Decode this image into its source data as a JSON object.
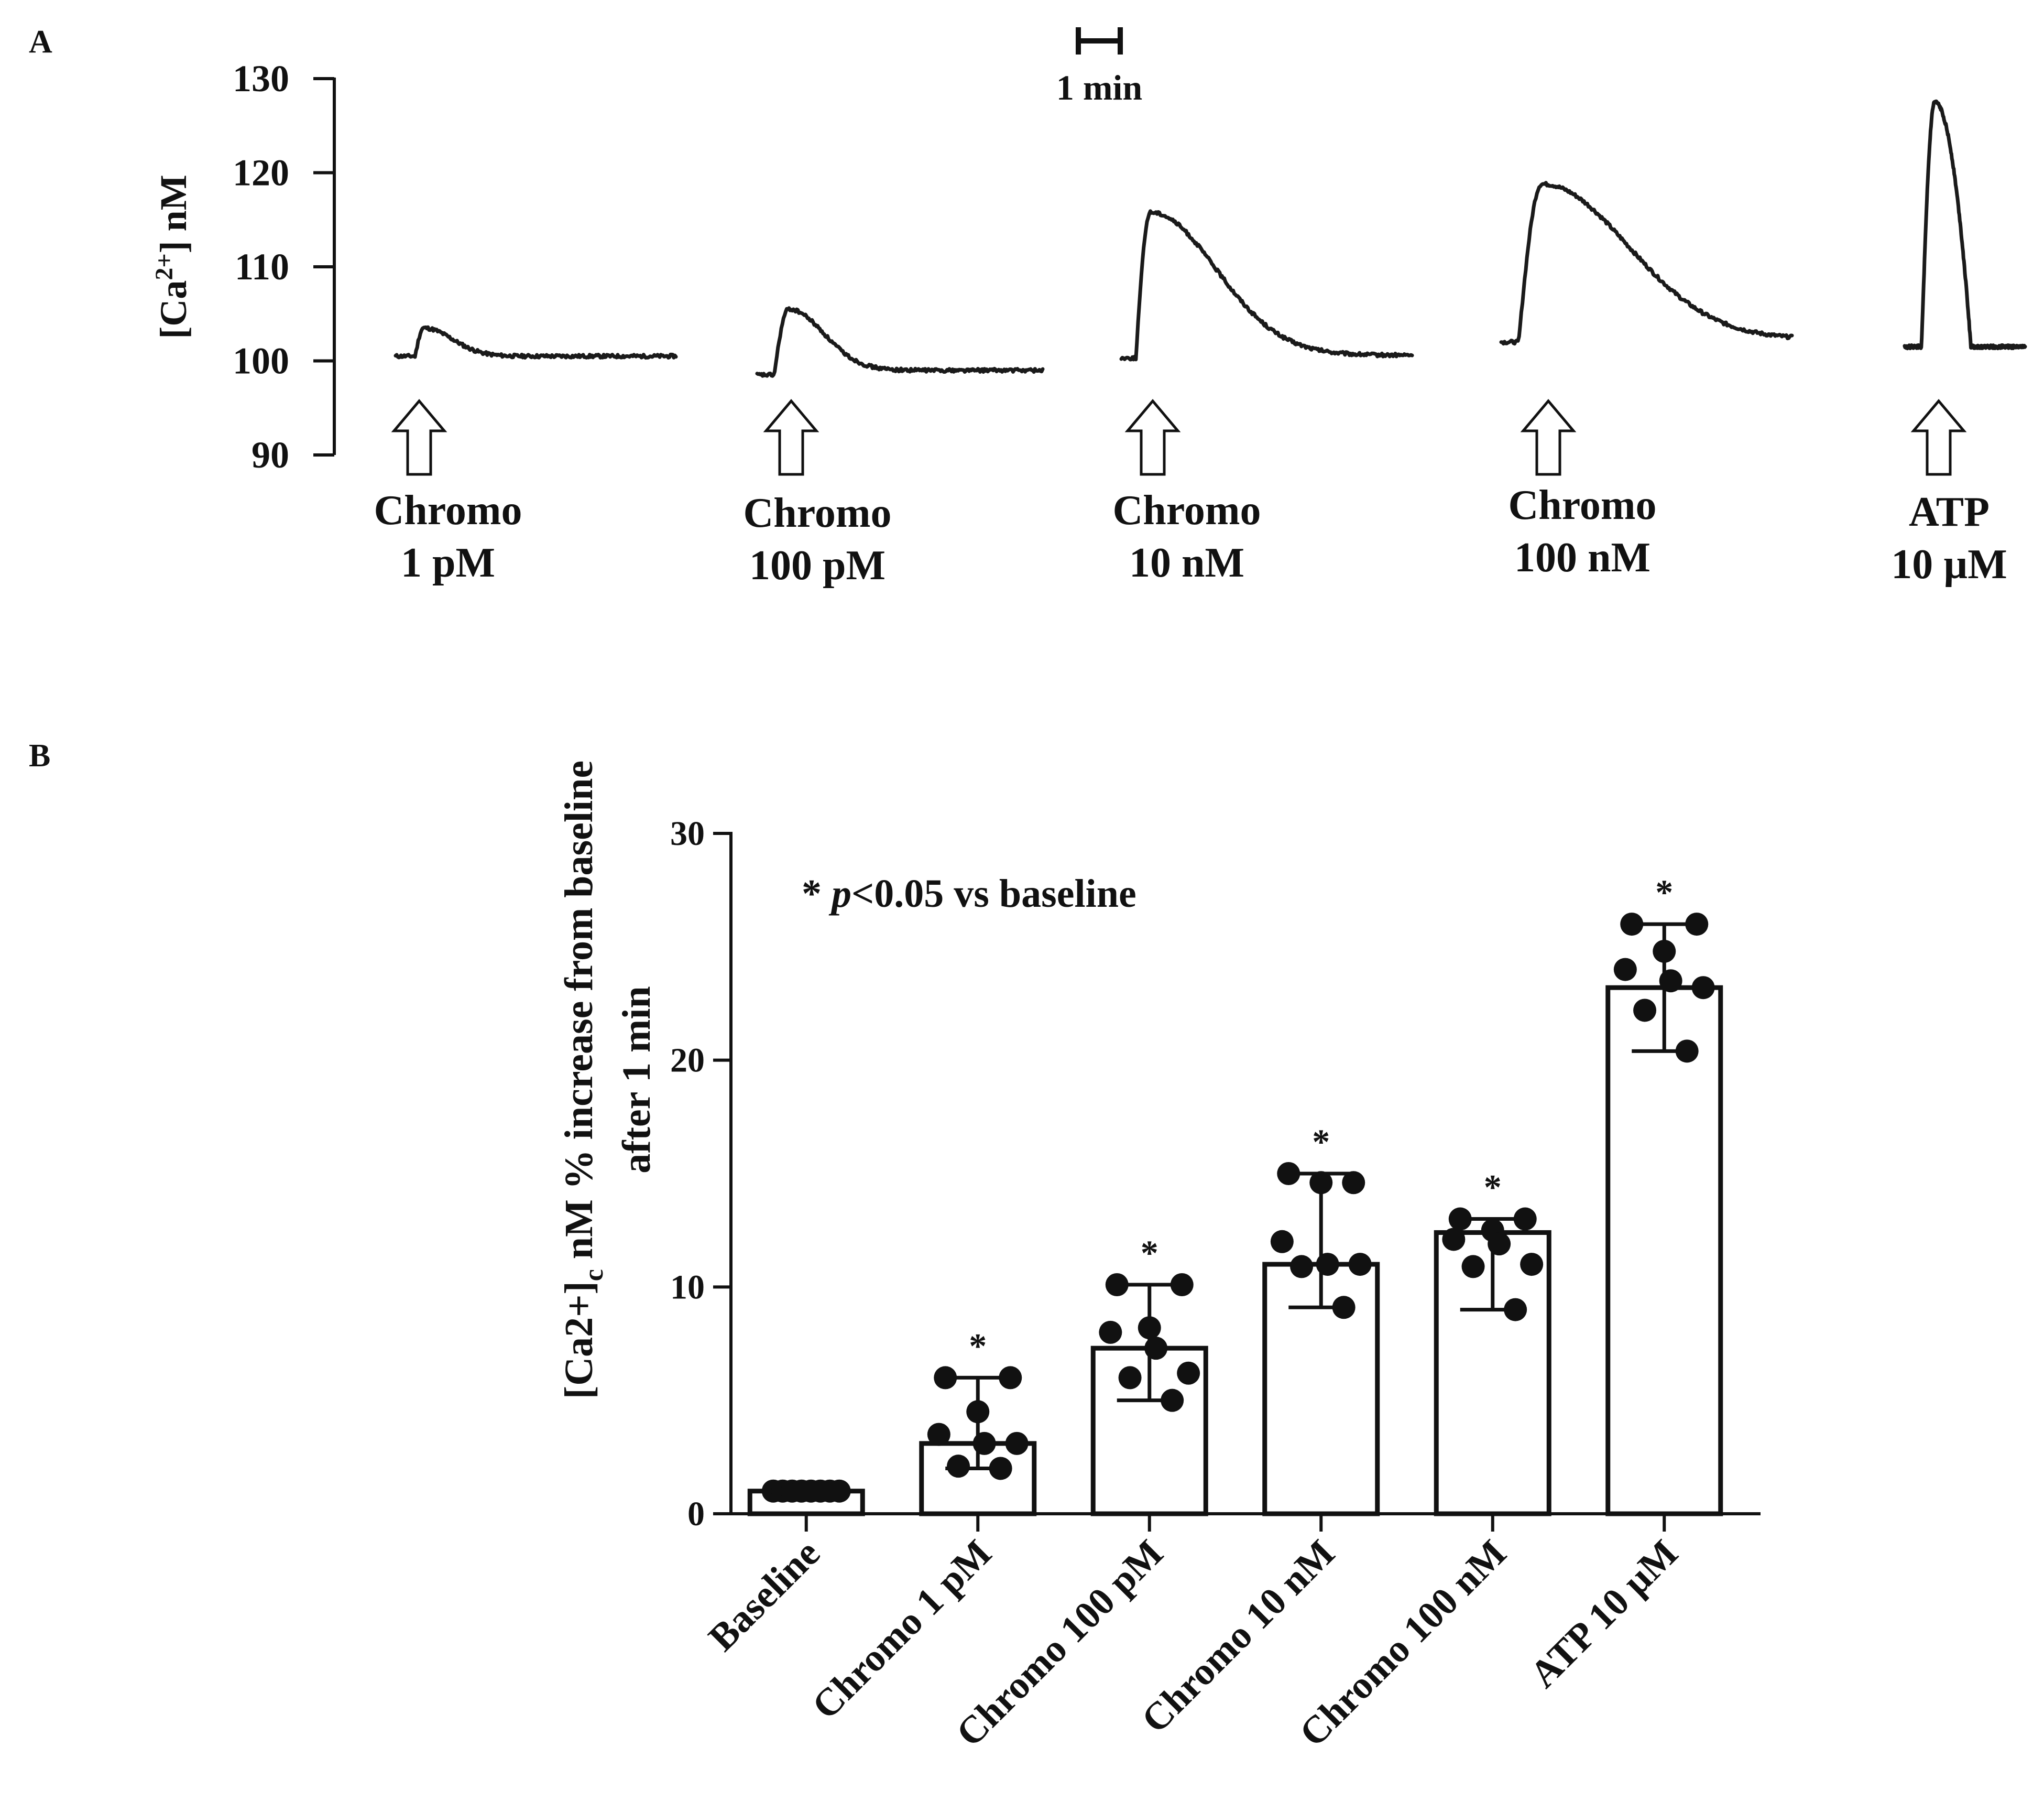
{
  "panel_a": {
    "label": "A",
    "scalebar_label": "1 min",
    "ylabel_main": "[Ca",
    "ylabel_sup": "2+",
    "ylabel_tail": "] nM",
    "ticks": [
      "90",
      "100",
      "110",
      "120",
      "130"
    ],
    "stimuli": [
      {
        "line1": "Chromo",
        "line2": "1 pM"
      },
      {
        "line1": "Chromo",
        "line2": "100 pM"
      },
      {
        "line1": "Chromo",
        "line2": "10 nM"
      },
      {
        "line1": "Chromo",
        "line2": "100 nM"
      },
      {
        "line1": "ATP",
        "line2": "10 µM"
      }
    ]
  },
  "panel_b": {
    "label": "B",
    "annotation_star": "* ",
    "annotation_p": "p",
    "annotation_rest": "<0.05 vs baseline",
    "ylabel_line1_a": "[Ca2+]",
    "ylabel_line1_sub": "c",
    "ylabel_line1_b": " nM % increase from baseline",
    "ylabel_line2": "after 1 min"
  },
  "chart_data": [
    {
      "type": "line",
      "title": "",
      "ylabel": "[Ca2+] nM",
      "ylim": [
        90,
        130
      ],
      "yticks": [
        90,
        100,
        110,
        120,
        130
      ],
      "series": [
        {
          "name": "Chromo 1 pM",
          "baseline": 100.5,
          "peak": 103.5,
          "plateau": 100.5
        },
        {
          "name": "Chromo 100 pM",
          "baseline": 98.5,
          "peak": 105.5,
          "plateau": 99
        },
        {
          "name": "Chromo 10 nM",
          "baseline": 100.3,
          "peak": 115.8,
          "plateau": 100.6
        },
        {
          "name": "Chromo 100 nM",
          "baseline": 102,
          "peak": 118.8,
          "plateau": 102.3
        },
        {
          "name": "ATP 10 µM",
          "baseline": 101.5,
          "peak": 127.5,
          "plateau": 101.5
        }
      ]
    },
    {
      "type": "bar",
      "title": "",
      "xlabel": "",
      "ylabel": "[Ca2+]c nM % increase from baseline after 1 min",
      "ylim": [
        0,
        30
      ],
      "yticks": [
        0,
        10,
        20,
        30
      ],
      "categories": [
        "Baseline",
        "Chromo 1 pM",
        "Chromo 100 pM",
        "Chromo 10 nM",
        "Chromo 100 nM",
        "ATP 10 µM"
      ],
      "values": [
        1,
        3.1,
        7.3,
        11,
        12.4,
        23.2
      ],
      "error_low": [
        1,
        2,
        5,
        9.1,
        9,
        20.4
      ],
      "error_high": [
        1,
        6,
        10.1,
        15,
        13,
        26
      ],
      "significance": [
        "",
        "*",
        "*",
        "*",
        "*",
        "*"
      ],
      "points": [
        [
          1,
          1,
          1,
          1,
          1,
          1,
          1,
          1
        ],
        [
          6,
          6,
          4.5,
          3.5,
          3.1,
          3.1,
          2.1,
          2
        ],
        [
          10.1,
          10.1,
          8.2,
          8,
          7.3,
          6.2,
          6,
          5
        ],
        [
          15,
          14.6,
          14.6,
          12,
          11,
          11,
          10.9,
          9.1
        ],
        [
          13,
          13,
          12.5,
          12.1,
          11.9,
          11,
          10.9,
          9
        ],
        [
          26,
          26,
          24.8,
          24,
          23.5,
          23.2,
          22.2,
          20.4
        ]
      ]
    }
  ]
}
